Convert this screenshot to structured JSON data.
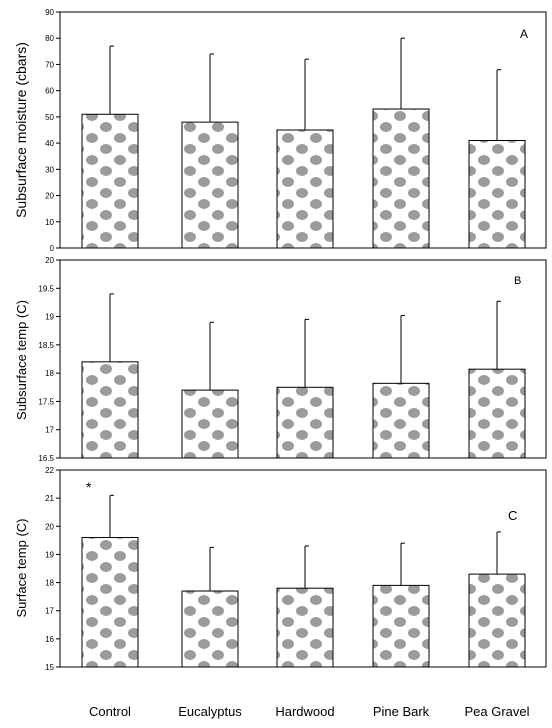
{
  "categories": [
    "Control",
    "Eucalyptus",
    "Hardwood",
    "Pine Bark",
    "Pea Gravel"
  ],
  "chart_data": [
    {
      "type": "bar",
      "panel_label": "A",
      "ylabel": "Subsurface moisture (cbars)",
      "ylim": [
        0,
        90
      ],
      "yticks": [
        "0",
        "10",
        "20",
        "30",
        "40",
        "50",
        "60",
        "70",
        "80",
        "90"
      ],
      "categories": [
        "Control",
        "Eucalyptus",
        "Hardwood",
        "Pine Bark",
        "Pea Gravel"
      ],
      "values": [
        51,
        48,
        45,
        53,
        41
      ],
      "error": [
        26,
        26,
        27,
        27,
        27
      ],
      "annotation": ""
    },
    {
      "type": "bar",
      "panel_label": "B",
      "ylabel": "Subsurface  temp (C)",
      "ylim": [
        16.5,
        20
      ],
      "yticks": [
        "16.5",
        "17",
        "17.5",
        "18",
        "18.5",
        "19",
        "19.5",
        "20"
      ],
      "categories": [
        "Control",
        "Eucalyptus",
        "Hardwood",
        "Pine Bark",
        "Pea Gravel"
      ],
      "values": [
        18.2,
        17.7,
        17.75,
        17.82,
        18.07
      ],
      "error": [
        1.2,
        1.2,
        1.2,
        1.2,
        1.2
      ],
      "annotation": ""
    },
    {
      "type": "bar",
      "panel_label": "C",
      "ylabel": "Surface temp (C)",
      "ylim": [
        15,
        22
      ],
      "yticks": [
        "15",
        "16",
        "17",
        "18",
        "19",
        "20",
        "21",
        "22"
      ],
      "categories": [
        "Control",
        "Eucalyptus",
        "Hardwood",
        "Pine Bark",
        "Pea Gravel"
      ],
      "values": [
        19.6,
        17.7,
        17.8,
        17.9,
        18.3
      ],
      "error": [
        1.5,
        1.55,
        1.5,
        1.5,
        1.5
      ],
      "annotation": "*"
    }
  ],
  "colors": {
    "bar_fill": "#ffffff",
    "pattern": "#8a8a8a",
    "stroke": "#000000"
  }
}
